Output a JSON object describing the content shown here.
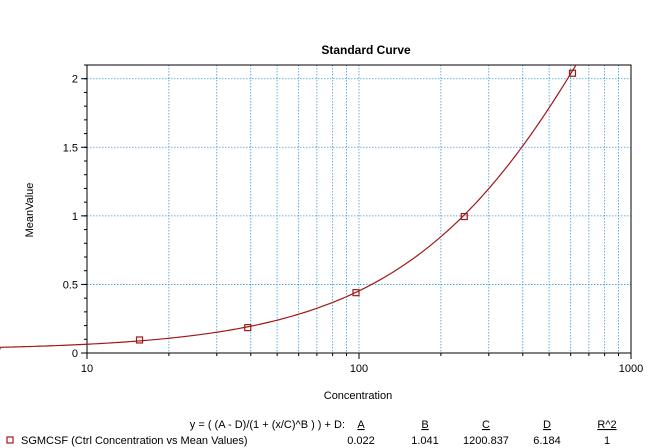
{
  "chart_data": {
    "type": "line",
    "title": "Standard Curve",
    "xlabel": "Concentration",
    "ylabel": "MeanValue",
    "x_scale": "log",
    "xlim": [
      10,
      1000
    ],
    "ylim": [
      0,
      2.1
    ],
    "grid": true,
    "x_major_ticks": [
      10,
      100,
      1000
    ],
    "x_tick_labels": [
      "10",
      "100",
      "1000"
    ],
    "y_ticks": [
      0,
      0.5,
      1,
      1.5,
      2
    ],
    "y_tick_labels": [
      "0",
      "0.5",
      "1",
      "1.5",
      "2"
    ],
    "series": [
      {
        "name": "SGMCSF (Ctrl Concentration vs Mean Values)",
        "x": [
          15.6,
          39,
          97.5,
          243.75,
          609.375
        ],
        "y": [
          0.095,
          0.185,
          0.44,
          0.995,
          2.04
        ]
      }
    ],
    "fit": {
      "equation": "y = ( (A - D)/(1 + (x/C)^B ) ) + D:",
      "params": {
        "A": 0.022,
        "B": 1.041,
        "C": 1200.837,
        "D": 6.184
      },
      "headers": [
        "A",
        "B",
        "C",
        "D",
        "R^2"
      ],
      "values": [
        "0.022",
        "1.041",
        "1200.837",
        "6.184",
        "1"
      ]
    },
    "colors": {
      "curve": "#a01818",
      "marker": "#a01818",
      "grid": "#3a9ad9",
      "axes": "#000000"
    }
  }
}
